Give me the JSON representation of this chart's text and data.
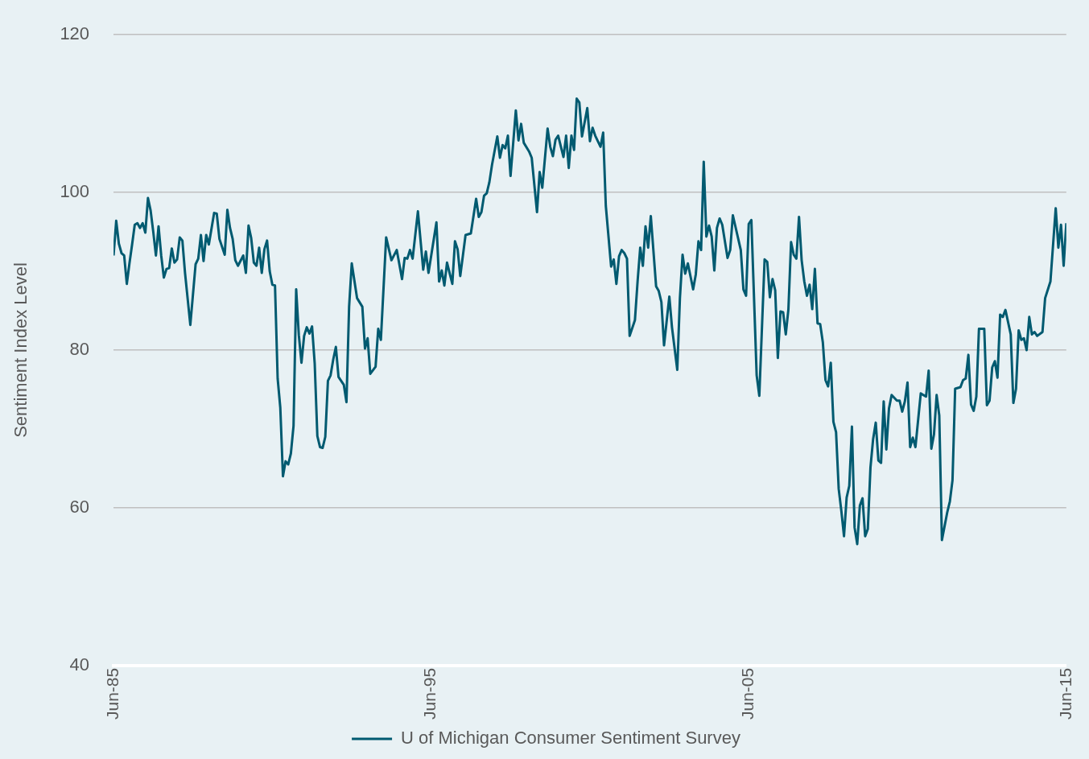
{
  "chart_data": {
    "type": "line",
    "ylabel": "Sentiment Index Level",
    "xlim": [
      "1985-06",
      "2015-06"
    ],
    "xticks": [
      {
        "value": "1985-06",
        "label": "Jun-85"
      },
      {
        "value": "1995-06",
        "label": "Jun-95"
      },
      {
        "value": "2005-06",
        "label": "Jun-05"
      },
      {
        "value": "2015-06",
        "label": "Jun-15"
      }
    ],
    "ylim": [
      40,
      120
    ],
    "yticks": [
      40,
      60,
      80,
      100,
      120
    ],
    "grid": "y",
    "legend": "bottom",
    "marker": "none",
    "line_style": "solid",
    "series": [
      {
        "name": "U of Michigan Consumer Sentiment Survey",
        "color": "#005a70",
        "x": [
          "1985-06",
          "1985-07",
          "1985-08",
          "1985-09",
          "1985-10",
          "1985-11",
          "1985-12",
          "1986-01",
          "1986-02",
          "1986-03",
          "1986-04",
          "1986-05",
          "1986-06",
          "1986-07",
          "1986-08",
          "1986-09",
          "1986-10",
          "1986-11",
          "1986-12",
          "1987-01",
          "1987-02",
          "1987-03",
          "1987-04",
          "1987-05",
          "1987-06",
          "1987-07",
          "1987-08",
          "1987-09",
          "1987-11",
          "1988-01",
          "1988-02",
          "1988-03",
          "1988-04",
          "1988-05",
          "1988-06",
          "1988-08",
          "1988-09",
          "1988-10",
          "1988-12",
          "1989-01",
          "1989-02",
          "1989-03",
          "1989-04",
          "1989-05",
          "1989-07",
          "1989-08",
          "1989-09",
          "1989-10",
          "1989-11",
          "1989-12",
          "1990-01",
          "1990-02",
          "1990-03",
          "1990-04",
          "1990-05",
          "1990-06",
          "1990-07",
          "1990-08",
          "1990-09",
          "1990-10",
          "1990-11",
          "1990-12",
          "1991-01",
          "1991-02",
          "1991-03",
          "1991-04",
          "1991-05",
          "1991-06",
          "1991-07",
          "1991-08",
          "1991-09",
          "1991-10",
          "1991-11",
          "1991-12",
          "1992-01",
          "1992-02",
          "1992-03",
          "1992-04",
          "1992-05",
          "1992-06",
          "1992-07",
          "1992-09",
          "1992-10",
          "1992-11",
          "1992-12",
          "1993-02",
          "1993-04",
          "1993-05",
          "1993-06",
          "1993-07",
          "1993-09",
          "1993-10",
          "1993-11",
          "1994-01",
          "1994-03",
          "1994-05",
          "1994-07",
          "1994-08",
          "1994-09",
          "1994-10",
          "1994-11",
          "1995-01",
          "1995-03",
          "1995-04",
          "1995-05",
          "1995-08",
          "1995-09",
          "1995-10",
          "1995-11",
          "1995-12",
          "1996-02",
          "1996-03",
          "1996-04",
          "1996-05",
          "1996-07",
          "1996-09",
          "1996-11",
          "1996-12",
          "1997-01",
          "1997-02",
          "1997-03",
          "1997-04",
          "1997-05",
          "1997-07",
          "1997-08",
          "1997-09",
          "1997-10",
          "1997-11",
          "1997-12",
          "1998-02",
          "1998-03",
          "1998-04",
          "1998-05",
          "1998-07",
          "1998-08",
          "1998-10",
          "1998-11",
          "1998-12",
          "1999-02",
          "1999-03",
          "1999-04",
          "1999-05",
          "1999-06",
          "1999-08",
          "1999-09",
          "1999-10",
          "1999-11",
          "1999-12",
          "2000-01",
          "2000-02",
          "2000-03",
          "2000-05",
          "2000-06",
          "2000-07",
          "2000-08",
          "2000-10",
          "2000-11",
          "2000-12",
          "2001-02",
          "2001-03",
          "2001-04",
          "2001-05",
          "2001-06",
          "2001-07",
          "2001-08",
          "2001-09",
          "2001-11",
          "2001-12",
          "2002-01",
          "2002-02",
          "2002-03",
          "2002-04",
          "2002-05",
          "2002-07",
          "2002-08",
          "2002-09",
          "2002-10",
          "2002-12",
          "2003-01",
          "2003-03",
          "2003-04",
          "2003-05",
          "2003-06",
          "2003-07",
          "2003-09",
          "2003-10",
          "2003-11",
          "2003-12",
          "2004-01",
          "2004-02",
          "2004-03",
          "2004-04",
          "2004-05",
          "2004-06",
          "2004-07",
          "2004-08",
          "2004-10",
          "2004-11",
          "2004-12",
          "2005-03",
          "2005-04",
          "2005-05",
          "2005-06",
          "2005-07",
          "2005-09",
          "2005-10",
          "2005-12",
          "2006-01",
          "2006-02",
          "2006-03",
          "2006-04",
          "2006-05",
          "2006-06",
          "2006-07",
          "2006-08",
          "2006-09",
          "2006-10",
          "2006-11",
          "2006-12",
          "2007-01",
          "2007-02",
          "2007-03",
          "2007-04",
          "2007-05",
          "2007-06",
          "2007-07",
          "2007-08",
          "2007-09",
          "2007-10",
          "2007-11",
          "2007-12",
          "2008-01",
          "2008-02",
          "2008-03",
          "2008-04",
          "2008-05",
          "2008-06",
          "2008-07",
          "2008-08",
          "2008-09",
          "2008-10",
          "2008-11",
          "2008-12",
          "2009-01",
          "2009-02",
          "2009-03",
          "2009-04",
          "2009-05",
          "2009-06",
          "2009-07",
          "2009-08",
          "2009-09",
          "2009-10",
          "2009-11",
          "2009-12",
          "2010-02",
          "2010-03",
          "2010-04",
          "2010-05",
          "2010-06",
          "2010-07",
          "2010-08",
          "2010-09",
          "2010-11",
          "2011-01",
          "2011-02",
          "2011-03",
          "2011-04",
          "2011-05",
          "2011-06",
          "2011-07",
          "2011-09",
          "2011-10",
          "2011-11",
          "2011-12",
          "2012-02",
          "2012-03",
          "2012-04",
          "2012-05",
          "2012-06",
          "2012-07",
          "2012-08",
          "2012-09",
          "2012-11",
          "2012-12",
          "2013-01",
          "2013-02",
          "2013-03",
          "2013-04",
          "2013-05",
          "2013-06",
          "2013-07",
          "2013-09",
          "2013-10",
          "2013-11",
          "2013-12",
          "2014-01",
          "2014-02",
          "2014-03",
          "2014-04",
          "2014-05",
          "2014-06",
          "2014-07",
          "2014-09",
          "2014-10",
          "2014-12",
          "2015-02",
          "2015-03",
          "2015-04",
          "2015-05",
          "2015-06"
        ],
        "values": [
          92.0,
          96.4,
          93.5,
          92.3,
          92.0,
          88.4,
          91.0,
          93.4,
          95.9,
          96.1,
          95.5,
          96.1,
          94.9,
          99.3,
          97.7,
          95.0,
          92.0,
          95.7,
          92.0,
          89.2,
          90.3,
          90.4,
          92.9,
          91.1,
          91.5,
          94.3,
          93.9,
          89.8,
          83.2,
          90.9,
          91.6,
          94.6,
          91.3,
          94.6,
          93.4,
          97.4,
          97.3,
          94.1,
          92.1,
          97.8,
          95.5,
          94.1,
          91.4,
          90.7,
          92.0,
          89.8,
          95.8,
          94.2,
          91.1,
          90.7,
          93.0,
          89.8,
          92.8,
          93.9,
          90.0,
          88.3,
          88.2,
          76.4,
          72.7,
          64.0,
          65.9,
          65.5,
          66.9,
          70.4,
          87.7,
          81.9,
          78.4,
          81.8,
          82.9,
          82.1,
          83.0,
          78.3,
          69.1,
          67.7,
          67.6,
          69.0,
          76.1,
          76.8,
          78.8,
          80.4,
          76.6,
          75.6,
          73.4,
          85.5,
          91.0,
          86.6,
          85.5,
          80.2,
          81.5,
          77.0,
          77.9,
          82.7,
          81.3,
          94.3,
          91.4,
          92.7,
          89.0,
          91.7,
          91.6,
          92.7,
          91.6,
          97.6,
          90.2,
          92.5,
          89.8,
          96.2,
          88.7,
          90.1,
          88.2,
          91.1,
          88.4,
          93.8,
          92.8,
          89.4,
          94.6,
          94.8,
          99.2,
          96.9,
          97.5,
          99.6,
          99.9,
          101.3,
          103.5,
          107.1,
          104.4,
          106.0,
          105.6,
          107.2,
          102.1,
          110.4,
          106.6,
          108.7,
          106.3,
          105.2,
          104.4,
          97.5,
          102.6,
          100.6,
          108.1,
          105.8,
          104.6,
          106.7,
          107.2,
          104.5,
          107.2,
          103.1,
          107.2,
          105.4,
          111.9,
          111.4,
          107.1,
          110.7,
          106.5,
          108.2,
          107.2,
          105.8,
          107.6,
          98.3,
          90.6,
          91.5,
          88.4,
          91.9,
          92.7,
          92.3,
          91.6,
          81.8,
          83.8,
          88.7,
          93.0,
          90.7,
          95.7,
          93.0,
          97.0,
          88.1,
          87.5,
          86.1,
          80.6,
          86.8,
          82.9,
          77.5,
          86.6,
          92.1,
          89.7,
          91.0,
          87.7,
          89.6,
          93.8,
          92.7,
          103.9,
          94.4,
          95.8,
          94.4,
          90.1,
          95.5,
          96.7,
          95.9,
          91.7,
          92.7,
          97.1,
          92.7,
          87.7,
          86.9,
          96.0,
          96.5,
          76.8,
          74.2,
          91.5,
          91.2,
          86.7,
          89.0,
          87.6,
          79.0,
          84.9,
          84.8,
          82.0,
          85.2,
          93.7,
          92.1,
          91.6,
          96.9,
          91.4,
          88.7,
          86.9,
          88.3,
          85.2,
          90.3,
          83.4,
          83.3,
          81.0,
          76.2,
          75.4,
          78.4,
          70.9,
          69.6,
          62.4,
          59.6,
          56.4,
          61.3,
          62.8,
          70.3,
          57.5,
          55.4,
          60.3,
          61.2,
          56.4,
          57.3,
          65.1,
          68.7,
          70.8,
          66.0,
          65.7,
          73.5,
          67.4,
          72.6,
          74.3,
          73.6,
          73.6,
          72.2,
          73.5,
          75.9,
          67.7,
          68.9,
          67.7,
          74.5,
          74.1,
          77.4,
          67.5,
          69.3,
          74.3,
          71.7,
          55.9,
          59.4,
          60.8,
          63.5,
          75.1,
          75.3,
          76.2,
          76.4,
          79.4,
          73.1,
          72.3,
          74.1,
          82.7,
          82.7,
          73.0,
          73.6,
          77.8,
          78.6,
          76.5,
          84.5,
          84.2,
          85.1,
          82.0,
          73.3,
          75.1,
          82.5,
          81.3,
          81.5,
          80.0,
          84.2,
          82.0,
          82.3,
          81.8,
          82.3,
          86.6,
          88.7,
          98.0,
          93.0,
          95.9,
          90.7,
          96.1
        ]
      }
    ]
  }
}
